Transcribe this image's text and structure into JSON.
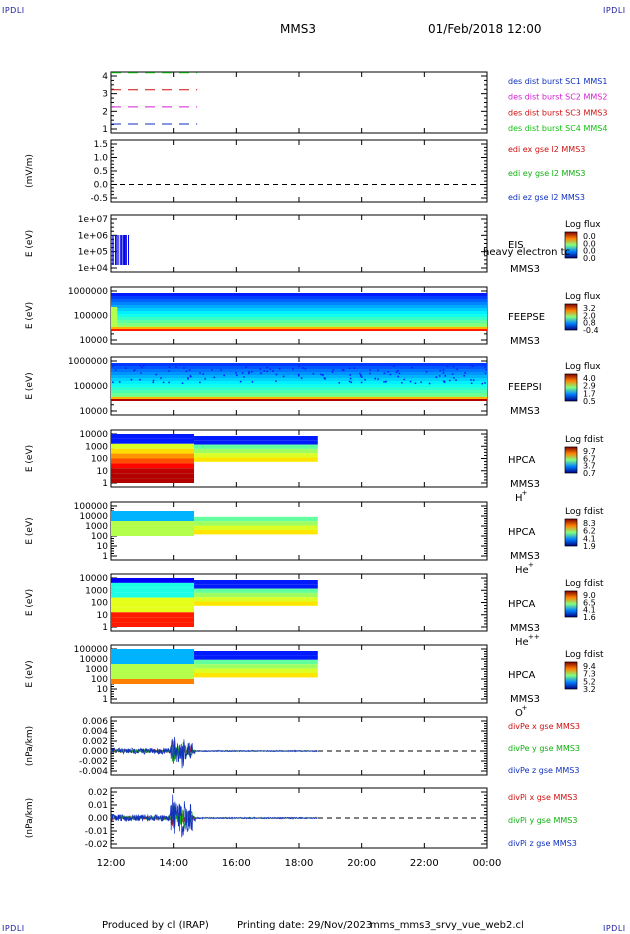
{
  "corners": {
    "tl": "IPDLI",
    "tr": "IPDLI",
    "bl": "IPDLI",
    "br": "IPDLI"
  },
  "header": {
    "spacecraft": "MMS3",
    "date": "01/Feb/2018 12:00"
  },
  "footer": {
    "produced": "Produced by cl (IRAP)",
    "printing": "Printing date: 29/Nov/2023",
    "file": "mms_mms3_srvy_vue_web2.cl"
  },
  "chart_data": [
    {
      "type": "line",
      "id": "burst",
      "ylabel": "",
      "ticks": [
        "4",
        "3",
        "2",
        "1"
      ],
      "x": [
        "12:00",
        "14:45"
      ],
      "series": [
        {
          "name": "des dist burst SC1 MMS1",
          "color": "#1030c0",
          "level": 1
        },
        {
          "name": "des dist burst SC2 MMS2",
          "color": "#d020d0",
          "level": 2
        },
        {
          "name": "des dist burst SC3 MMS3",
          "color": "#d01010",
          "level": 3
        },
        {
          "name": "des dist burst SC4 MMS4",
          "color": "#10c010",
          "level": 4
        }
      ]
    },
    {
      "type": "line",
      "id": "edi",
      "ylabel": "(mV/m)",
      "ticks": [
        "1.5",
        "1.0",
        "0.5",
        "0.0",
        "-0.5"
      ],
      "series": [
        {
          "name": "edi ex gse l2 MMS3",
          "color": "#d01010"
        },
        {
          "name": "edi ey gse l2 MMS3",
          "color": "#10b010"
        },
        {
          "name": "edi ez gse l2 MMS3",
          "color": "#1030c0"
        }
      ]
    },
    {
      "type": "heatmap",
      "id": "eis",
      "ylabel": "E (eV)",
      "ticks": [
        "1e+07",
        "1e+06",
        "1e+05",
        "1e+04"
      ],
      "inst": "EIS",
      "extra": "heavy electron tc",
      "sc": "MMS3",
      "cbtitle": "Log flux",
      "cbticks": [
        "0.0",
        "0.0",
        "0.0",
        "0.0"
      ]
    },
    {
      "type": "heatmap",
      "id": "feepse",
      "ylabel": "E (eV)",
      "ticks": [
        "1000000",
        "100000",
        "10000"
      ],
      "inst": "FEEPSE",
      "sc": "MMS3",
      "cbtitle": "Log flux",
      "cbticks": [
        "3.2",
        "2.0",
        "0.8",
        "-0.4"
      ]
    },
    {
      "type": "heatmap",
      "id": "feepsi",
      "ylabel": "E (eV)",
      "ticks": [
        "1000000",
        "100000",
        "10000"
      ],
      "inst": "FEEPSI",
      "sc": "MMS3",
      "cbtitle": "Log flux",
      "cbticks": [
        "4.0",
        "2.9",
        "1.7",
        "0.5"
      ]
    },
    {
      "type": "heatmap",
      "id": "hpca_h",
      "ylabel": "E (eV)",
      "ticks": [
        "10000",
        "1000",
        "100",
        "10",
        "1"
      ],
      "inst": "HPCA",
      "sc": "MMS3",
      "species": "H",
      "charge": "+",
      "cbtitle": "Log fdist",
      "cbticks": [
        "9.7",
        "6.7",
        "3.7",
        "0.7"
      ]
    },
    {
      "type": "heatmap",
      "id": "hpca_he",
      "ylabel": "E (eV)",
      "ticks": [
        "100000",
        "10000",
        "1000",
        "100",
        "10",
        "1"
      ],
      "inst": "HPCA",
      "sc": "MMS3",
      "species": "He",
      "charge": "+",
      "cbtitle": "Log fdist",
      "cbticks": [
        "8.3",
        "6.2",
        "4.1",
        "1.9"
      ]
    },
    {
      "type": "heatmap",
      "id": "hpca_hepp",
      "ylabel": "E (eV)",
      "ticks": [
        "10000",
        "1000",
        "100",
        "10",
        "1"
      ],
      "inst": "HPCA",
      "sc": "MMS3",
      "species": "He",
      "charge": "++",
      "cbtitle": "Log fdist",
      "cbticks": [
        "9.0",
        "6.5",
        "4.1",
        "1.6"
      ]
    },
    {
      "type": "heatmap",
      "id": "hpca_o",
      "ylabel": "E (eV)",
      "ticks": [
        "100000",
        "10000",
        "1000",
        "100",
        "10",
        "1"
      ],
      "inst": "HPCA",
      "sc": "MMS3",
      "species": "O",
      "charge": "+",
      "cbtitle": "Log fdist",
      "cbticks": [
        "9.4",
        "7.3",
        "5.2",
        "3.2"
      ]
    },
    {
      "type": "line",
      "id": "divpe",
      "ylabel": "(nPa/km)",
      "ticks": [
        "0.006",
        "0.004",
        "0.002",
        "0.000",
        "-0.002",
        "-0.004"
      ],
      "series": [
        {
          "name": "divPe x gse MMS3",
          "color": "#d01010"
        },
        {
          "name": "divPe y gse MMS3",
          "color": "#10b010"
        },
        {
          "name": "divPe z gse MMS3",
          "color": "#1030c0"
        }
      ]
    },
    {
      "type": "line",
      "id": "divpi",
      "ylabel": "(nPa/km)",
      "ticks": [
        "0.02",
        "0.01",
        "0.00",
        "-0.01",
        "-0.02"
      ],
      "series": [
        {
          "name": "divPi x gse MMS3",
          "color": "#d01010"
        },
        {
          "name": "divPi y gse MMS3",
          "color": "#10b010"
        },
        {
          "name": "divPi z gse MMS3",
          "color": "#1030c0"
        }
      ]
    }
  ],
  "xaxis": {
    "ticks": [
      "12:00",
      "14:00",
      "16:00",
      "18:00",
      "20:00",
      "22:00",
      "00:00"
    ]
  }
}
